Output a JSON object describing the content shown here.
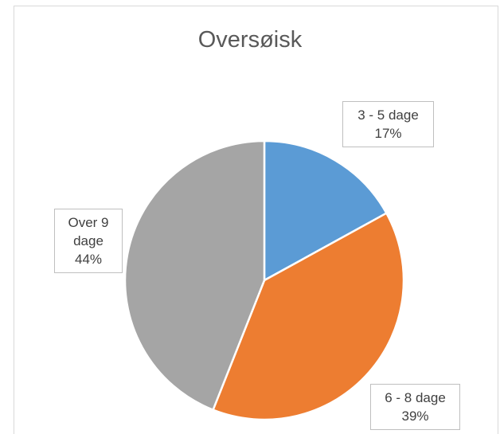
{
  "chart_data": {
    "type": "pie",
    "title": "Oversøisk",
    "categories": [
      "3 - 5 dage",
      "6 - 8 dage",
      "Over 9 dage"
    ],
    "values": [
      17,
      39,
      44
    ],
    "value_labels": [
      "17%",
      "39%",
      "44%"
    ],
    "colors": [
      "#5b9bd5",
      "#ed7d31",
      "#a5a5a5"
    ]
  }
}
